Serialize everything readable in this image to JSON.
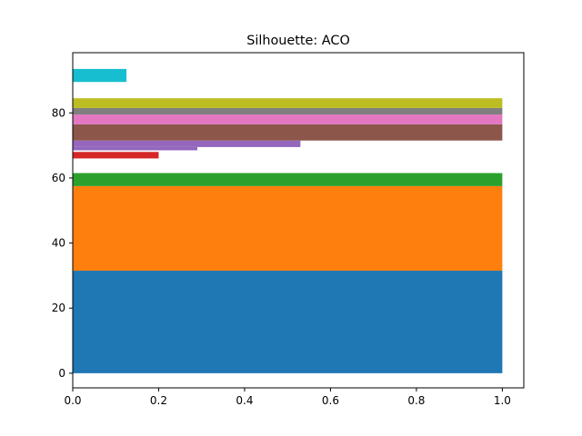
{
  "chart_data": {
    "type": "bar",
    "orientation": "horizontal",
    "title": "Silhouette: ACO",
    "xlabel": "",
    "ylabel": "",
    "xlim": [
      0.0,
      1.05
    ],
    "ylim": [
      -4.5,
      98.5
    ],
    "xticks": [
      {
        "value": 0.0,
        "label": "0.0"
      },
      {
        "value": 0.2,
        "label": "0.2"
      },
      {
        "value": 0.4,
        "label": "0.4"
      },
      {
        "value": 0.6,
        "label": "0.6"
      },
      {
        "value": 0.8,
        "label": "0.8"
      },
      {
        "value": 1.0,
        "label": "1.0"
      }
    ],
    "yticks": [
      {
        "value": 0,
        "label": "0"
      },
      {
        "value": 20,
        "label": "20"
      },
      {
        "value": 40,
        "label": "40"
      },
      {
        "value": 60,
        "label": "60"
      },
      {
        "value": 80,
        "label": "80"
      }
    ],
    "grid": false,
    "legend": "none",
    "series": [
      {
        "y_from": 0,
        "y_to": 31.5,
        "value": 1.0,
        "color": "#1f77b4"
      },
      {
        "y_from": 31.5,
        "y_to": 57.5,
        "value": 1.0,
        "color": "#ff7f0e"
      },
      {
        "y_from": 57.5,
        "y_to": 61.5,
        "value": 1.0,
        "color": "#2ca02c"
      },
      {
        "y_from": 66.0,
        "y_to": 68.0,
        "value": 0.2,
        "color": "#d62728"
      },
      {
        "y_from": 68.5,
        "y_to": 69.5,
        "value": 0.29,
        "color": "#9467bd"
      },
      {
        "y_from": 69.5,
        "y_to": 71.5,
        "value": 0.53,
        "color": "#9467bd"
      },
      {
        "y_from": 71.5,
        "y_to": 76.5,
        "value": 1.0,
        "color": "#8c564b"
      },
      {
        "y_from": 76.5,
        "y_to": 79.5,
        "value": 1.0,
        "color": "#e377c2"
      },
      {
        "y_from": 79.5,
        "y_to": 81.5,
        "value": 1.0,
        "color": "#7f7f7f"
      },
      {
        "y_from": 81.5,
        "y_to": 84.5,
        "value": 1.0,
        "color": "#bcbd22"
      },
      {
        "y_from": 89.5,
        "y_to": 93.5,
        "value": 0.125,
        "color": "#17becf"
      }
    ]
  }
}
